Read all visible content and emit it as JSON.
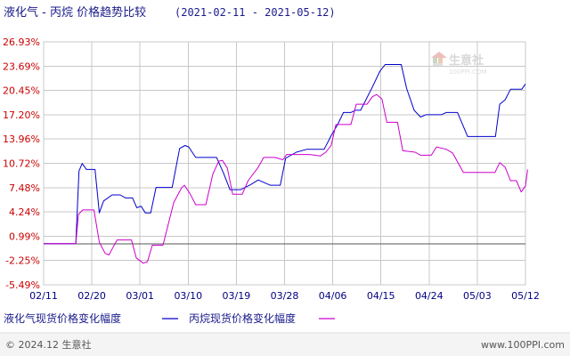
{
  "header": {
    "title": "液化气 - 丙烷 价格趋势比较",
    "range": "(2021-02-11 - 2021-05-12)"
  },
  "legend": [
    {
      "label": "液化气现货价格变化幅度",
      "color": "#0000cc"
    },
    {
      "label": "丙烷现货价格变化幅度",
      "color": "#cc00cc"
    }
  ],
  "footer": {
    "copyright": "© 2024.12 生意社",
    "site": "www.100PPI.com"
  },
  "watermark": {
    "brand": "生意社",
    "sub": "100PPI.COM"
  },
  "colors": {
    "series1": "#0000cc",
    "series2": "#cc00cc",
    "ytick": "#cc0000",
    "xtick": "#000080",
    "grid": "#c8c8c8",
    "zero_line": "#555555"
  },
  "chart_data": {
    "type": "line",
    "y_tick_labels": [
      "26.93%",
      "23.69%",
      "20.45%",
      "17.20%",
      "13.96%",
      "10.72%",
      "7.48%",
      "4.24%",
      "0.99%",
      "-2.25%",
      "-5.49%"
    ],
    "y_tick_values": [
      26.93,
      23.69,
      20.45,
      17.2,
      13.96,
      10.72,
      7.48,
      4.24,
      0.99,
      -2.25,
      -5.49
    ],
    "ylim": [
      -5.49,
      26.93
    ],
    "x_tick_labels": [
      "02/11",
      "02/20",
      "03/01",
      "03/10",
      "03/19",
      "03/28",
      "04/06",
      "04/15",
      "04/24",
      "05/03",
      "05/12"
    ],
    "x_tick_days": [
      0,
      9,
      18,
      27,
      36,
      45,
      54,
      63,
      72,
      81,
      90
    ],
    "xlim": [
      0,
      90
    ],
    "grid": true,
    "legend_position": "bottom",
    "series": [
      {
        "name": "液化气现货价格变化幅度",
        "color": "#0000cc",
        "points": [
          [
            0,
            0
          ],
          [
            6,
            0
          ],
          [
            6.6,
            9.7
          ],
          [
            7.2,
            10.7
          ],
          [
            8,
            9.9
          ],
          [
            9.6,
            9.9
          ],
          [
            10.4,
            4.1
          ],
          [
            11.2,
            5.7
          ],
          [
            12.8,
            6.5
          ],
          [
            14.3,
            6.5
          ],
          [
            15.3,
            6.1
          ],
          [
            16.6,
            6.1
          ],
          [
            17.4,
            4.8
          ],
          [
            18.2,
            5.0
          ],
          [
            19,
            4.1
          ],
          [
            20,
            4.1
          ],
          [
            21,
            7.5
          ],
          [
            24,
            7.5
          ],
          [
            25.4,
            12.7
          ],
          [
            26.4,
            13.1
          ],
          [
            27.1,
            12.9
          ],
          [
            28.4,
            11.5
          ],
          [
            32.3,
            11.5
          ],
          [
            33.6,
            9.4
          ],
          [
            34.8,
            7.2
          ],
          [
            36.8,
            7.2
          ],
          [
            38.5,
            7.8
          ],
          [
            40.1,
            8.5
          ],
          [
            42.3,
            7.8
          ],
          [
            44.2,
            7.8
          ],
          [
            45.2,
            11.4
          ],
          [
            47.2,
            12.2
          ],
          [
            49.2,
            12.6
          ],
          [
            52.4,
            12.6
          ],
          [
            53.7,
            14.4
          ],
          [
            55,
            16.0
          ],
          [
            56,
            17.5
          ],
          [
            57.4,
            17.5
          ],
          [
            58.2,
            17.8
          ],
          [
            59.2,
            17.8
          ],
          [
            61.4,
            20.9
          ],
          [
            62.8,
            23.0
          ],
          [
            63.8,
            23.9
          ],
          [
            66.8,
            23.9
          ],
          [
            67.8,
            20.7
          ],
          [
            69.2,
            17.8
          ],
          [
            70.4,
            16.9
          ],
          [
            71.4,
            17.2
          ],
          [
            74.3,
            17.2
          ],
          [
            75.2,
            17.5
          ],
          [
            77.3,
            17.5
          ],
          [
            79.2,
            14.3
          ],
          [
            84.4,
            14.3
          ],
          [
            85.2,
            18.6
          ],
          [
            86.2,
            19.2
          ],
          [
            87.2,
            20.6
          ],
          [
            89.3,
            20.6
          ],
          [
            90,
            21.3
          ]
        ]
      },
      {
        "name": "丙烷现货价格变化幅度",
        "color": "#cc00cc",
        "points": [
          [
            0,
            0
          ],
          [
            6,
            0
          ],
          [
            6.5,
            3.9
          ],
          [
            7.3,
            4.5
          ],
          [
            9.4,
            4.5
          ],
          [
            10.4,
            0.2
          ],
          [
            11.5,
            -1.3
          ],
          [
            12.2,
            -1.5
          ],
          [
            13.7,
            0.5
          ],
          [
            15.2,
            0.5
          ],
          [
            16.4,
            0.5
          ],
          [
            17.3,
            -1.9
          ],
          [
            18.6,
            -2.6
          ],
          [
            19.4,
            -2.4
          ],
          [
            20.3,
            -0.2
          ],
          [
            22.3,
            -0.2
          ],
          [
            24.3,
            5.5
          ],
          [
            25.8,
            7.5
          ],
          [
            26.3,
            7.8
          ],
          [
            27.4,
            6.6
          ],
          [
            28.4,
            5.2
          ],
          [
            30.3,
            5.2
          ],
          [
            31.6,
            9.3
          ],
          [
            32.7,
            11.0
          ],
          [
            33.4,
            11.1
          ],
          [
            34.3,
            10.1
          ],
          [
            35.3,
            6.6
          ],
          [
            37.1,
            6.6
          ],
          [
            38.2,
            8.4
          ],
          [
            40,
            10.1
          ],
          [
            41.1,
            11.5
          ],
          [
            43.2,
            11.5
          ],
          [
            44.7,
            11.2
          ],
          [
            45.4,
            11.9
          ],
          [
            47.4,
            11.9
          ],
          [
            49.7,
            11.9
          ],
          [
            51.7,
            11.7
          ],
          [
            52.7,
            12.2
          ],
          [
            53.7,
            13.1
          ],
          [
            54.6,
            15.9
          ],
          [
            56.1,
            15.9
          ],
          [
            57.4,
            15.9
          ],
          [
            58.4,
            18.6
          ],
          [
            60.4,
            18.6
          ],
          [
            61.4,
            19.6
          ],
          [
            62.2,
            19.9
          ],
          [
            63.2,
            19.3
          ],
          [
            64.1,
            16.2
          ],
          [
            66.1,
            16.2
          ],
          [
            67.1,
            12.4
          ],
          [
            69.4,
            12.2
          ],
          [
            70.4,
            11.8
          ],
          [
            72.4,
            11.8
          ],
          [
            73.4,
            12.9
          ],
          [
            75.2,
            12.6
          ],
          [
            76.4,
            12.1
          ],
          [
            78.4,
            9.5
          ],
          [
            84.3,
            9.5
          ],
          [
            85.2,
            10.8
          ],
          [
            86.2,
            10.2
          ],
          [
            87.2,
            8.4
          ],
          [
            88.3,
            8.4
          ],
          [
            89.2,
            6.9
          ],
          [
            90,
            7.7
          ],
          [
            90.4,
            9.9
          ]
        ]
      }
    ]
  }
}
